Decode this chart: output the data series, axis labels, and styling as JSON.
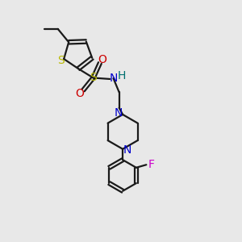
{
  "background_color": "#e8e8e8",
  "bond_color": "#1a1a1a",
  "sulfur_color": "#b8b800",
  "nitrogen_color": "#0000cc",
  "oxygen_color": "#cc0000",
  "fluorine_color": "#cc00cc",
  "hydrogen_color": "#007070",
  "figsize": [
    3.0,
    3.0
  ],
  "dpi": 100,
  "xlim": [
    0,
    10
  ],
  "ylim": [
    0,
    10
  ],
  "lw": 1.6,
  "fs": 9.5
}
